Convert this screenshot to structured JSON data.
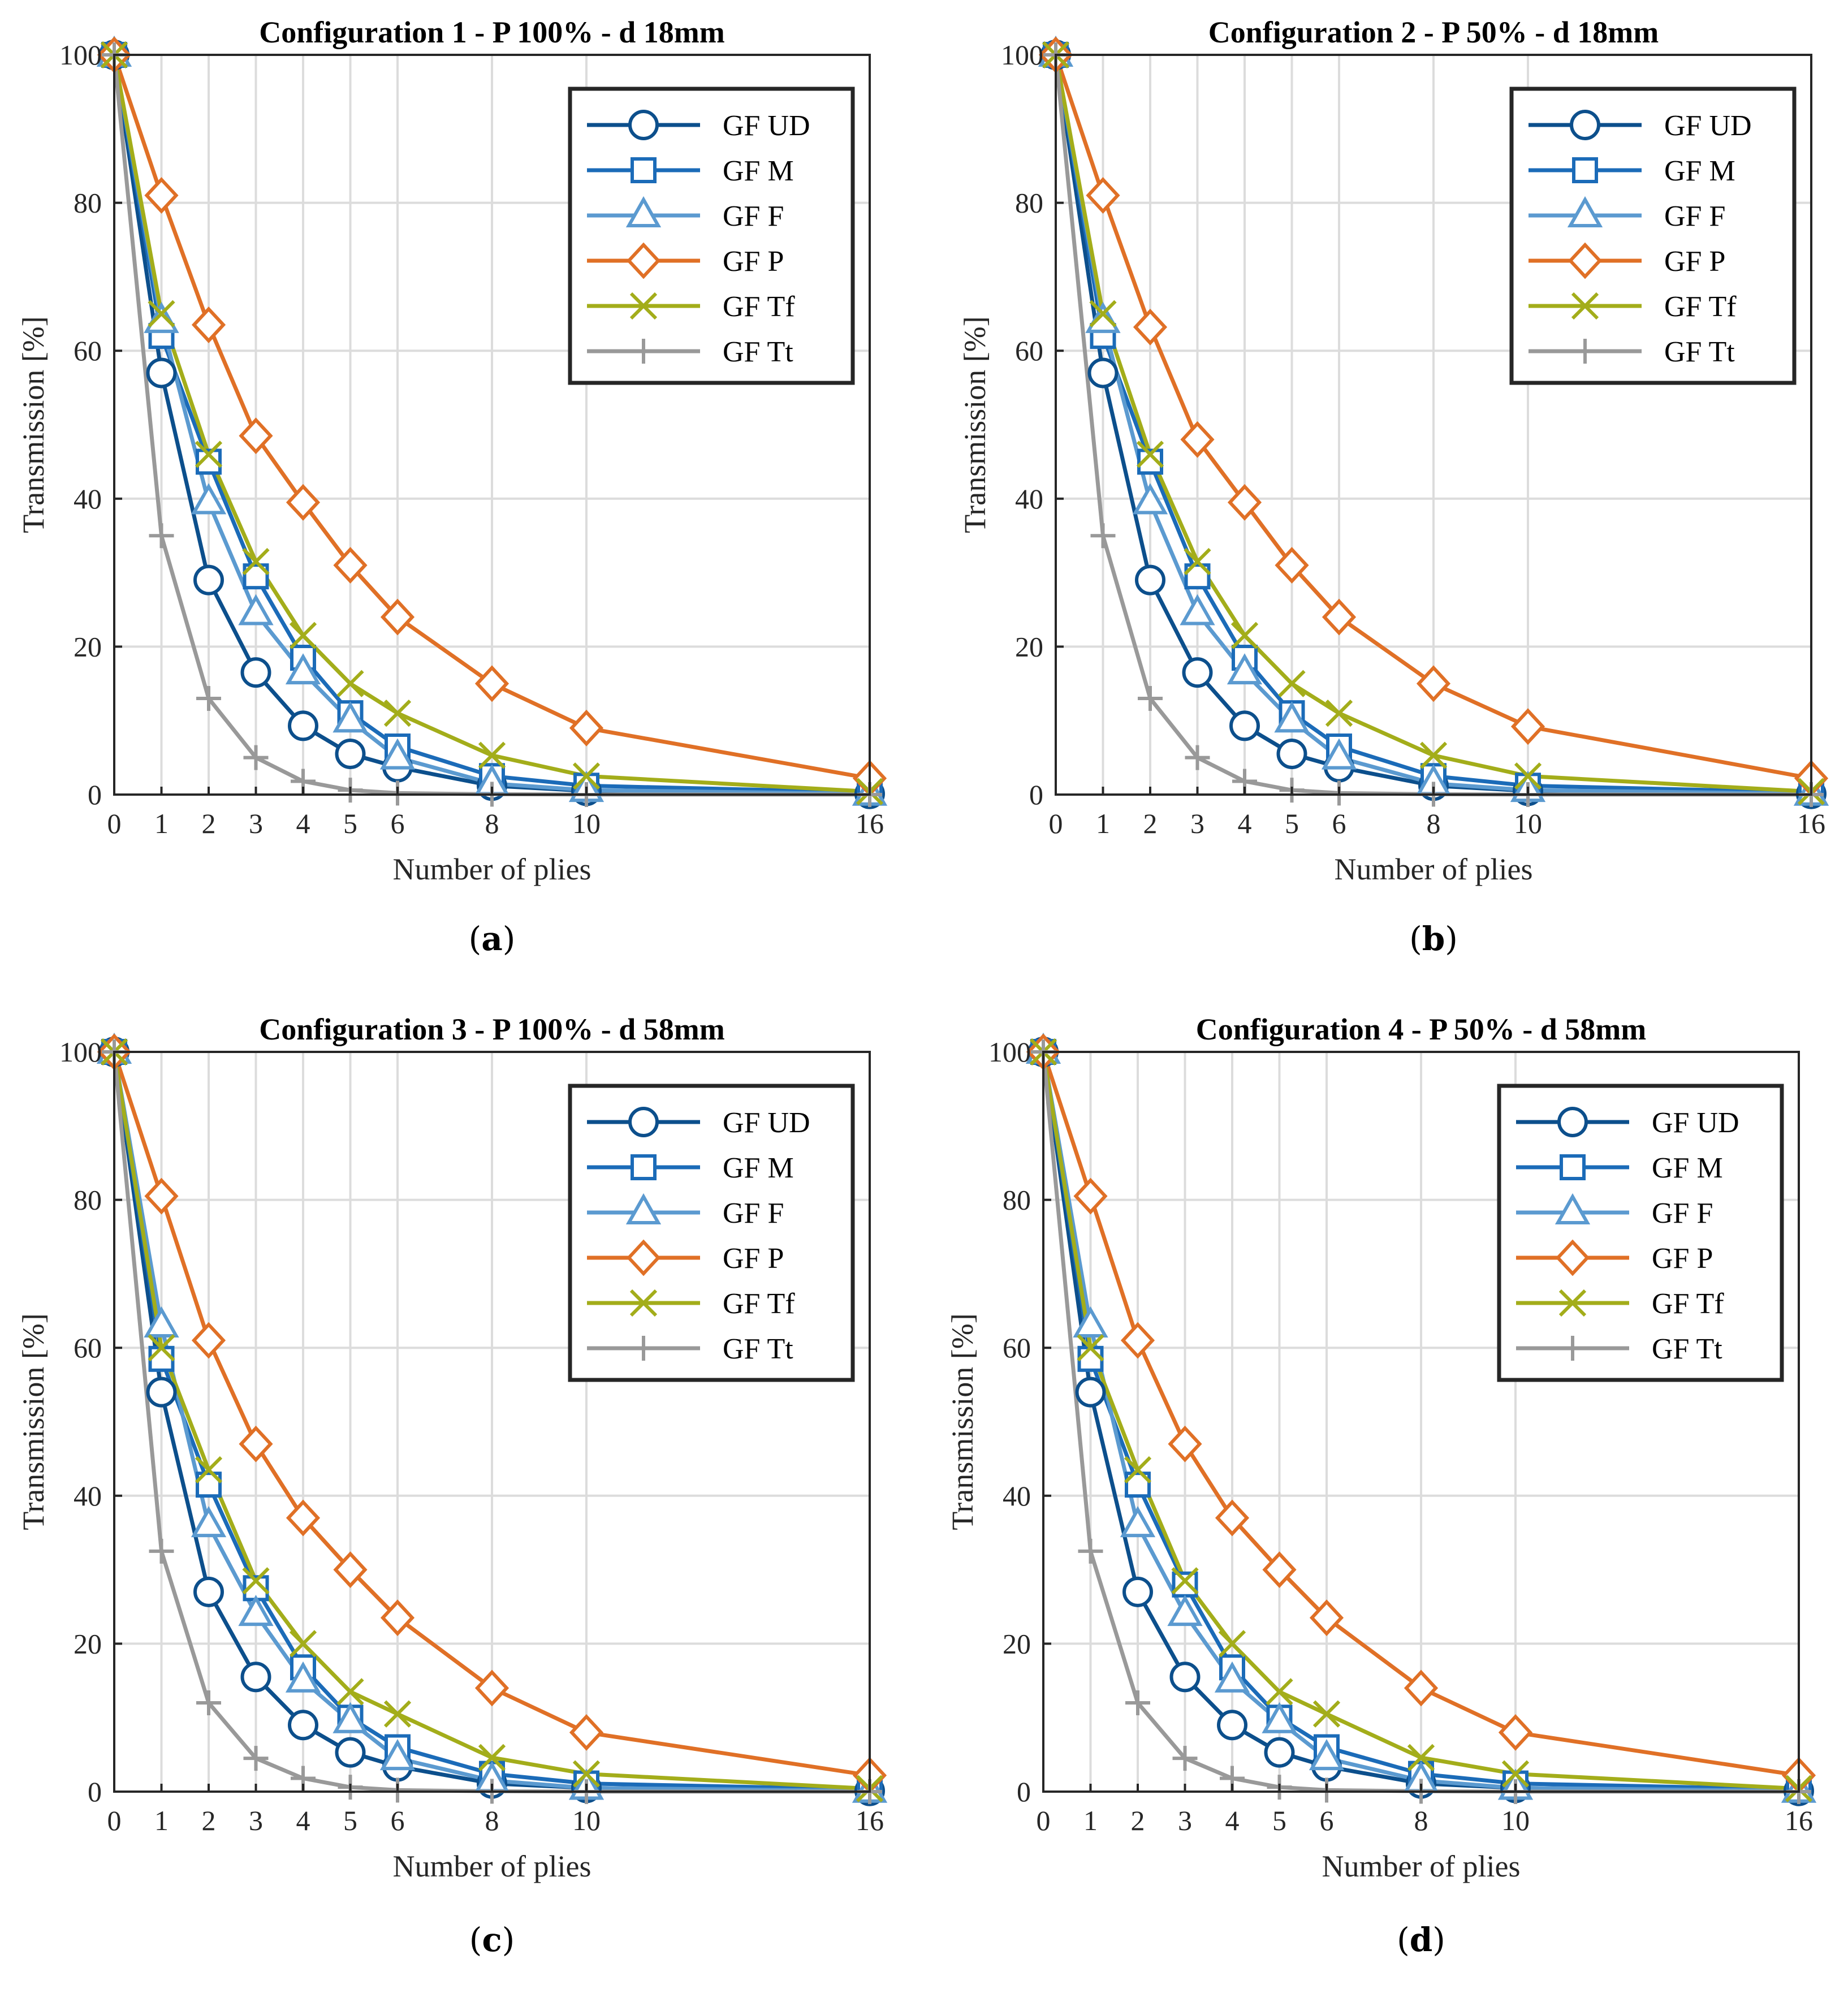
{
  "chart_data": [
    {
      "type": "line",
      "panel": "a",
      "title": "Configuration 1 - P 100% - d 18mm",
      "xlabel": "Number of plies",
      "ylabel": "Transmission [%]",
      "x": [
        0,
        1,
        2,
        3,
        4,
        5,
        6,
        8,
        10,
        16
      ],
      "xlim": [
        0,
        16
      ],
      "ylim": [
        0,
        100
      ],
      "xticks": [
        0,
        1,
        2,
        3,
        4,
        5,
        6,
        8,
        10,
        16
      ],
      "yticks": [
        0,
        20,
        40,
        60,
        80,
        100
      ],
      "grid": true,
      "legend_position": "top-right",
      "series": [
        {
          "name": "GF UD",
          "values": [
            100,
            57,
            29,
            16.5,
            9.3,
            5.5,
            3.7,
            1.2,
            0.5,
            0.1
          ]
        },
        {
          "name": "GF M",
          "values": [
            100,
            62,
            45,
            29.5,
            18.5,
            11,
            6.5,
            2.5,
            1.2,
            0.3
          ]
        },
        {
          "name": "GF F",
          "values": [
            100,
            64,
            39.5,
            24.5,
            16.5,
            10,
            5,
            1.5,
            0.6,
            0.1
          ]
        },
        {
          "name": "GF P",
          "values": [
            100,
            81,
            63.5,
            48.5,
            39.5,
            31,
            24,
            15,
            9,
            2.2
          ]
        },
        {
          "name": "GF Tf",
          "values": [
            100,
            65,
            46,
            31.5,
            21.5,
            15,
            11,
            5.3,
            2.5,
            0.4
          ]
        },
        {
          "name": "GF Tt",
          "values": [
            100,
            35,
            13,
            5,
            1.8,
            0.6,
            0.2,
            0.05,
            0,
            0
          ]
        }
      ]
    },
    {
      "type": "line",
      "panel": "b",
      "title": "Configuration 2 - P 50% - d 18mm",
      "xlabel": "Number of plies",
      "ylabel": "Transmission [%]",
      "x": [
        0,
        1,
        2,
        3,
        4,
        5,
        6,
        8,
        10,
        16
      ],
      "xlim": [
        0,
        16
      ],
      "ylim": [
        0,
        100
      ],
      "xticks": [
        0,
        1,
        2,
        3,
        4,
        5,
        6,
        8,
        10,
        16
      ],
      "yticks": [
        0,
        20,
        40,
        60,
        80,
        100
      ],
      "grid": true,
      "legend_position": "top-right",
      "series": [
        {
          "name": "GF UD",
          "values": [
            100,
            57,
            29,
            16.5,
            9.3,
            5.5,
            3.7,
            1.2,
            0.5,
            0.1
          ]
        },
        {
          "name": "GF M",
          "values": [
            100,
            62,
            45,
            29.5,
            18.5,
            11,
            6.5,
            2.5,
            1.2,
            0.3
          ]
        },
        {
          "name": "GF F",
          "values": [
            100,
            64,
            39.5,
            24.5,
            16.5,
            10,
            5,
            1.5,
            0.6,
            0.1
          ]
        },
        {
          "name": "GF P",
          "values": [
            100,
            81,
            63.2,
            48,
            39.5,
            31,
            24,
            15,
            9.2,
            2.2
          ]
        },
        {
          "name": "GF Tf",
          "values": [
            100,
            65,
            46,
            31.5,
            21.5,
            15,
            11,
            5.3,
            2.5,
            0.4
          ]
        },
        {
          "name": "GF Tt",
          "values": [
            100,
            35,
            13,
            5,
            1.8,
            0.6,
            0.2,
            0.05,
            0,
            0
          ]
        }
      ]
    },
    {
      "type": "line",
      "panel": "c",
      "title": "Configuration 3 - P 100% - d 58mm",
      "xlabel": "Number of plies",
      "ylabel": "Transmission [%]",
      "x": [
        0,
        1,
        2,
        3,
        4,
        5,
        6,
        8,
        10,
        16
      ],
      "xlim": [
        0,
        16
      ],
      "ylim": [
        0,
        100
      ],
      "xticks": [
        0,
        1,
        2,
        3,
        4,
        5,
        6,
        8,
        10,
        16
      ],
      "yticks": [
        0,
        20,
        40,
        60,
        80,
        100
      ],
      "grid": true,
      "legend_position": "top-right",
      "series": [
        {
          "name": "GF UD",
          "values": [
            100,
            54,
            27,
            15.5,
            9,
            5.3,
            3.4,
            1.1,
            0.5,
            0.1
          ]
        },
        {
          "name": "GF M",
          "values": [
            100,
            58.5,
            41.5,
            27.5,
            16.8,
            10,
            6,
            2.4,
            1.1,
            0.3
          ]
        },
        {
          "name": "GF F",
          "values": [
            100,
            63,
            36,
            24,
            15,
            9.5,
            4.5,
            1.5,
            0.5,
            0.1
          ]
        },
        {
          "name": "GF P",
          "values": [
            100,
            80.5,
            61,
            47,
            37,
            30,
            23.5,
            14,
            8,
            2.2
          ]
        },
        {
          "name": "GF Tf",
          "values": [
            100,
            60,
            43.5,
            28.5,
            20,
            13.5,
            10.5,
            4.6,
            2.4,
            0.4
          ]
        },
        {
          "name": "GF Tt",
          "values": [
            100,
            32.5,
            12,
            4.5,
            1.8,
            0.6,
            0.2,
            0.05,
            0,
            0
          ]
        }
      ]
    },
    {
      "type": "line",
      "panel": "d",
      "title": "Configuration 4 - P 50% - d 58mm",
      "xlabel": "Number of plies",
      "ylabel": "Transmission [%]",
      "x": [
        0,
        1,
        2,
        3,
        4,
        5,
        6,
        8,
        10,
        16
      ],
      "xlim": [
        0,
        16
      ],
      "ylim": [
        0,
        100
      ],
      "xticks": [
        0,
        1,
        2,
        3,
        4,
        5,
        6,
        8,
        10,
        16
      ],
      "yticks": [
        0,
        20,
        40,
        60,
        80,
        100
      ],
      "grid": true,
      "legend_position": "top-right",
      "series": [
        {
          "name": "GF UD",
          "values": [
            100,
            54,
            27,
            15.5,
            9,
            5.3,
            3.4,
            1.1,
            0.5,
            0.1
          ]
        },
        {
          "name": "GF M",
          "values": [
            100,
            58.5,
            41.5,
            28,
            16.8,
            10,
            6,
            2.4,
            1.1,
            0.3
          ]
        },
        {
          "name": "GF F",
          "values": [
            100,
            63,
            36,
            24,
            15,
            9.5,
            4.5,
            1.5,
            0.5,
            0.1
          ]
        },
        {
          "name": "GF P",
          "values": [
            100,
            80.5,
            61,
            47,
            37,
            30,
            23.5,
            14,
            8,
            2.2
          ]
        },
        {
          "name": "GF Tf",
          "values": [
            100,
            60,
            43.5,
            28.5,
            20,
            13.5,
            10.5,
            4.6,
            2.4,
            0.4
          ]
        },
        {
          "name": "GF Tt",
          "values": [
            100,
            32.5,
            12,
            4.5,
            1.8,
            0.6,
            0.2,
            0.05,
            0,
            0
          ]
        }
      ]
    }
  ],
  "colors": {
    "GF UD": "#0c4f8c",
    "GF M": "#1b6bb8",
    "GF F": "#5b9ad0",
    "GF P": "#e07026",
    "GF Tf": "#a3ad1a",
    "GF Tt": "#999999",
    "grid": "#dcdcdc",
    "axis": "#262626"
  },
  "markers": {
    "GF UD": "circle",
    "GF M": "square",
    "GF F": "triangle",
    "GF P": "diamond",
    "GF Tf": "x",
    "GF Tt": "plus"
  },
  "panel_labels": [
    "a",
    "b",
    "c",
    "d"
  ]
}
